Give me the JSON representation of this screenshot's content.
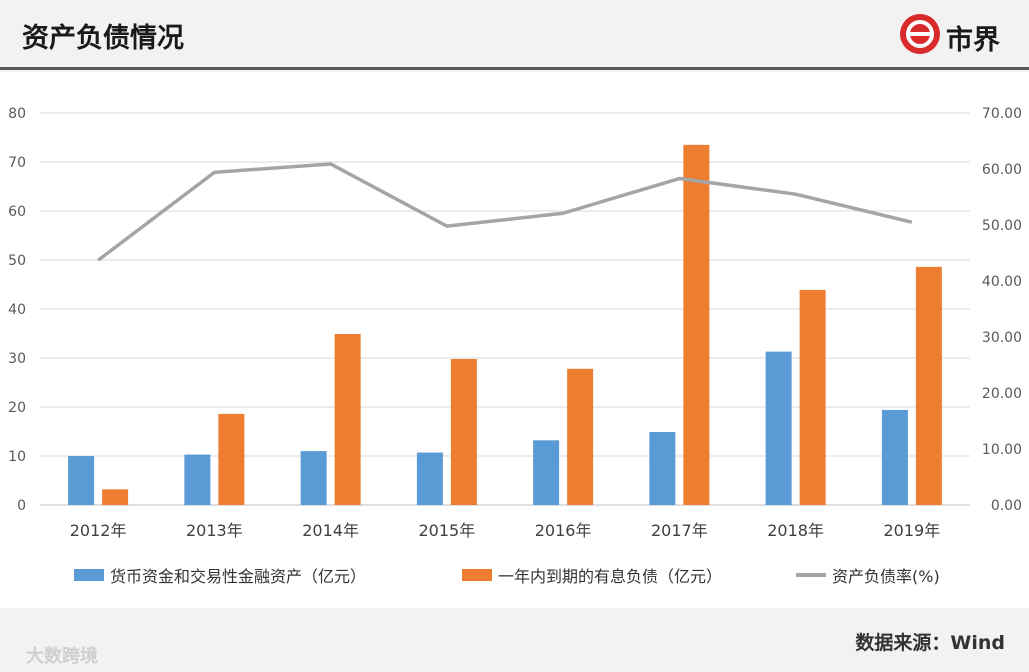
{
  "header": {
    "title": "资产负债情况",
    "logo_text": "市界"
  },
  "footer": {
    "source": "数据来源：Wind",
    "watermark": "大数跨境"
  },
  "colors": {
    "blue": "#5b9bd5",
    "orange": "#ed7d31",
    "gray": "#a5a5a5",
    "logo_red": "#d92b2b"
  },
  "chart_data": {
    "type": "bar",
    "categories": [
      "2012年",
      "2013年",
      "2014年",
      "2015年",
      "2016年",
      "2017年",
      "2018年",
      "2019年"
    ],
    "series": [
      {
        "name": "货币资金和交易性金融资产（亿元）",
        "type": "bar",
        "axis": "left",
        "color": "#5b9bd5",
        "values": [
          10,
          10.3,
          11,
          10.7,
          13.2,
          14.9,
          31.3,
          19.4
        ]
      },
      {
        "name": "一年内到期的有息负债（亿元）",
        "type": "bar",
        "axis": "left",
        "color": "#ed7d31",
        "values": [
          3.2,
          18.6,
          34.9,
          29.8,
          27.8,
          73.5,
          43.9,
          48.6
        ]
      },
      {
        "name": "资产负债率(%)",
        "type": "line",
        "axis": "right",
        "color": "#a5a5a5",
        "values": [
          43.7,
          59.4,
          60.9,
          49.8,
          52.1,
          58.3,
          55.5,
          50.5
        ]
      }
    ],
    "left_axis": {
      "ylim": [
        0,
        80
      ],
      "ticks": [
        "0",
        "10",
        "20",
        "30",
        "40",
        "50",
        "60",
        "70",
        "80"
      ]
    },
    "right_axis": {
      "ylim": [
        0,
        70
      ],
      "ticks": [
        "0.00",
        "10.00",
        "20.00",
        "30.00",
        "40.00",
        "50.00",
        "60.00",
        "70.00"
      ]
    },
    "grid": true,
    "legend_position": "bottom"
  }
}
